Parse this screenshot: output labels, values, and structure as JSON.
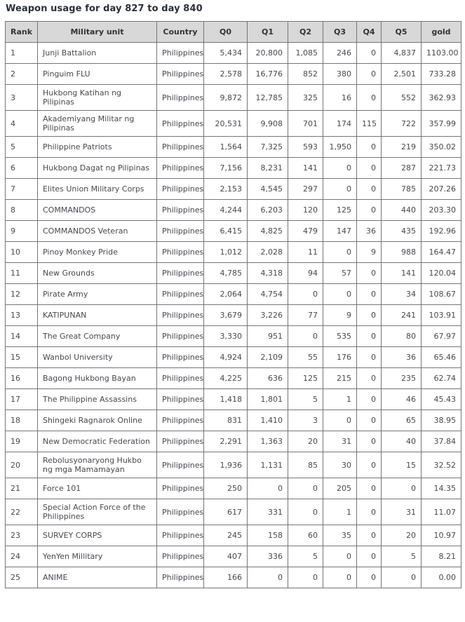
{
  "title": "Weapon usage for day 827 to day 840",
  "colors": {
    "title_text": "#2b3036",
    "header_bg": "#d8d8d8",
    "header_text": "#333333",
    "cell_text": "#47484f",
    "border": "#757575",
    "row_bg": "#ffffff"
  },
  "table": {
    "columns": [
      "Rank",
      "Military unit",
      "Country",
      "Q0",
      "Q1",
      "Q2",
      "Q3",
      "Q4",
      "Q5",
      "gold"
    ],
    "rows": [
      {
        "rank": "1",
        "unit": "Junji Battalion",
        "country": "Philippines",
        "q0": "5,434",
        "q1": "20,800",
        "q2": "1,085",
        "q3": "246",
        "q4": "0",
        "q5": "4,837",
        "gold": "1103.00"
      },
      {
        "rank": "2",
        "unit": "Pinguim FLU",
        "country": "Philippines",
        "q0": "2,578",
        "q1": "16,776",
        "q2": "852",
        "q3": "380",
        "q4": "0",
        "q5": "2,501",
        "gold": "733.28"
      },
      {
        "rank": "3",
        "unit": "Hukbong Katihan ng Pilipinas",
        "country": "Philippines",
        "q0": "9,872",
        "q1": "12,785",
        "q2": "325",
        "q3": "16",
        "q4": "0",
        "q5": "552",
        "gold": "362.93"
      },
      {
        "rank": "4",
        "unit": "Akademiyang Militar ng Pilipinas",
        "country": "Philippines",
        "q0": "20,531",
        "q1": "9,908",
        "q2": "701",
        "q3": "174",
        "q4": "115",
        "q5": "722",
        "gold": "357.99"
      },
      {
        "rank": "5",
        "unit": "Philippine Patriots",
        "country": "Philippines",
        "q0": "1,564",
        "q1": "7,325",
        "q2": "593",
        "q3": "1,950",
        "q4": "0",
        "q5": "219",
        "gold": "350.02"
      },
      {
        "rank": "6",
        "unit": "Hukbong Dagat ng Pilipinas",
        "country": "Philippines",
        "q0": "7,156",
        "q1": "8,231",
        "q2": "141",
        "q3": "0",
        "q4": "0",
        "q5": "287",
        "gold": "221.73"
      },
      {
        "rank": "7",
        "unit": "Elites Union Military Corps",
        "country": "Philippines",
        "q0": "2,153",
        "q1": "4,545",
        "q2": "297",
        "q3": "0",
        "q4": "0",
        "q5": "785",
        "gold": "207.26"
      },
      {
        "rank": "8",
        "unit": "COMMANDOS",
        "country": "Philippines",
        "q0": "4,244",
        "q1": "6,203",
        "q2": "120",
        "q3": "125",
        "q4": "0",
        "q5": "440",
        "gold": "203.30"
      },
      {
        "rank": "9",
        "unit": "COMMANDOS Veteran",
        "country": "Philippines",
        "q0": "6,415",
        "q1": "4,825",
        "q2": "479",
        "q3": "147",
        "q4": "36",
        "q5": "435",
        "gold": "192.96"
      },
      {
        "rank": "10",
        "unit": "Pinoy Monkey Pride",
        "country": "Philippines",
        "q0": "1,012",
        "q1": "2,028",
        "q2": "11",
        "q3": "0",
        "q4": "9",
        "q5": "988",
        "gold": "164.47"
      },
      {
        "rank": "11",
        "unit": "New Grounds",
        "country": "Philippines",
        "q0": "4,785",
        "q1": "4,318",
        "q2": "94",
        "q3": "57",
        "q4": "0",
        "q5": "141",
        "gold": "120.04"
      },
      {
        "rank": "12",
        "unit": "Pirate Army",
        "country": "Philippines",
        "q0": "2,064",
        "q1": "4,754",
        "q2": "0",
        "q3": "0",
        "q4": "0",
        "q5": "34",
        "gold": "108.67"
      },
      {
        "rank": "13",
        "unit": "KATIPUNAN",
        "country": "Philippines",
        "q0": "3,679",
        "q1": "3,226",
        "q2": "77",
        "q3": "9",
        "q4": "0",
        "q5": "241",
        "gold": "103.91"
      },
      {
        "rank": "14",
        "unit": "The Great Company",
        "country": "Philippines",
        "q0": "3,330",
        "q1": "951",
        "q2": "0",
        "q3": "535",
        "q4": "0",
        "q5": "80",
        "gold": "67.97"
      },
      {
        "rank": "15",
        "unit": "Wanbol University",
        "country": "Philippines",
        "q0": "4,924",
        "q1": "2,109",
        "q2": "55",
        "q3": "176",
        "q4": "0",
        "q5": "36",
        "gold": "65.46"
      },
      {
        "rank": "16",
        "unit": "Bagong Hukbong Bayan",
        "country": "Philippines",
        "q0": "4,225",
        "q1": "636",
        "q2": "125",
        "q3": "215",
        "q4": "0",
        "q5": "235",
        "gold": "62.74"
      },
      {
        "rank": "17",
        "unit": "The Philippine Assassins",
        "country": "Philippines",
        "q0": "1,418",
        "q1": "1,801",
        "q2": "5",
        "q3": "1",
        "q4": "0",
        "q5": "46",
        "gold": "45.43"
      },
      {
        "rank": "18",
        "unit": "Shingeki Ragnarok Online",
        "country": "Philippines",
        "q0": "831",
        "q1": "1,410",
        "q2": "3",
        "q3": "0",
        "q4": "0",
        "q5": "65",
        "gold": "38.95"
      },
      {
        "rank": "19",
        "unit": "New Democratic Federation",
        "country": "Philippines",
        "q0": "2,291",
        "q1": "1,363",
        "q2": "20",
        "q3": "31",
        "q4": "0",
        "q5": "40",
        "gold": "37.84"
      },
      {
        "rank": "20",
        "unit": "Rebolusyonaryong Hukbo ng mga Mamamayan",
        "country": "Philippines",
        "q0": "1,936",
        "q1": "1,131",
        "q2": "85",
        "q3": "30",
        "q4": "0",
        "q5": "15",
        "gold": "32.52"
      },
      {
        "rank": "21",
        "unit": "Force 101",
        "country": "Philippines",
        "q0": "250",
        "q1": "0",
        "q2": "0",
        "q3": "205",
        "q4": "0",
        "q5": "0",
        "gold": "14.35"
      },
      {
        "rank": "22",
        "unit": "Special Action Force of the Philippines",
        "country": "Philippines",
        "q0": "617",
        "q1": "331",
        "q2": "0",
        "q3": "1",
        "q4": "0",
        "q5": "31",
        "gold": "11.07"
      },
      {
        "rank": "23",
        "unit": "SURVEY CORPS",
        "country": "Philippines",
        "q0": "245",
        "q1": "158",
        "q2": "60",
        "q3": "35",
        "q4": "0",
        "q5": "20",
        "gold": "10.97"
      },
      {
        "rank": "24",
        "unit": "YenYen Millitary",
        "country": "Philippines",
        "q0": "407",
        "q1": "336",
        "q2": "5",
        "q3": "0",
        "q4": "0",
        "q5": "5",
        "gold": "8.21"
      },
      {
        "rank": "25",
        "unit": "ANIME",
        "country": "Philippines",
        "q0": "166",
        "q1": "0",
        "q2": "0",
        "q3": "0",
        "q4": "0",
        "q5": "0",
        "gold": "0.00"
      }
    ]
  }
}
